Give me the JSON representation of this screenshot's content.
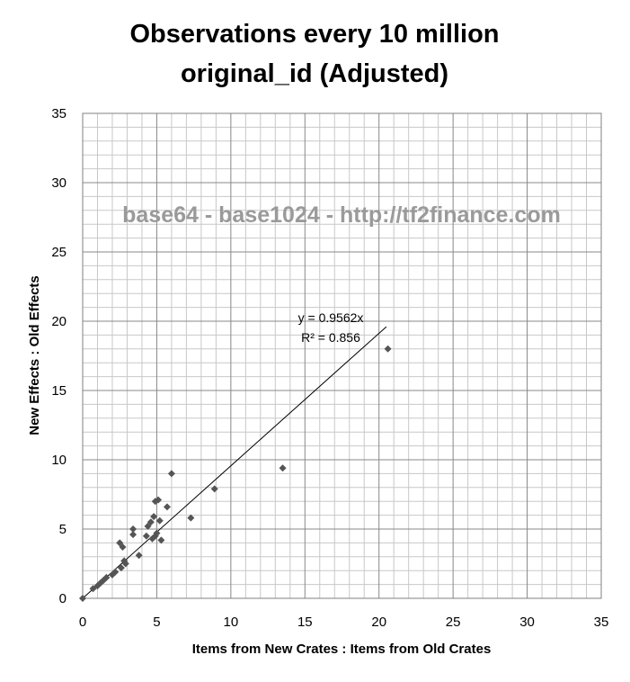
{
  "chart_data": {
    "type": "scatter",
    "title_lines": [
      "Observations every 10 million",
      "original_id (Adjusted)"
    ],
    "xlabel": "Items from New Crates : Items from Old Crates",
    "ylabel": "New Effects : Old Effects",
    "xlim": [
      0,
      35
    ],
    "ylim": [
      0,
      35
    ],
    "major_ticks": [
      0,
      5,
      10,
      15,
      20,
      25,
      30,
      35
    ],
    "minor_step": 1,
    "grid": true,
    "marker": "diamond",
    "marker_color": "#555555",
    "watermark": "base64 - base1024 - http://tf2finance.com",
    "trendline": {
      "slope": 0.9562,
      "x_range": [
        0,
        20.5
      ],
      "equation": "y = 0.9562x",
      "r_squared": "R² = 0.856"
    },
    "points": [
      [
        0,
        0
      ],
      [
        0.7,
        0.7
      ],
      [
        1.0,
        0.9
      ],
      [
        1.2,
        1.1
      ],
      [
        1.4,
        1.3
      ],
      [
        1.6,
        1.5
      ],
      [
        2.0,
        1.7
      ],
      [
        2.2,
        1.9
      ],
      [
        2.5,
        4.0
      ],
      [
        2.6,
        2.2
      ],
      [
        2.7,
        3.7
      ],
      [
        2.8,
        2.7
      ],
      [
        2.9,
        2.5
      ],
      [
        3.4,
        5.0
      ],
      [
        3.4,
        4.6
      ],
      [
        3.8,
        3.1
      ],
      [
        4.3,
        4.5
      ],
      [
        4.4,
        5.2
      ],
      [
        4.6,
        5.5
      ],
      [
        4.7,
        4.3
      ],
      [
        4.8,
        5.9
      ],
      [
        4.9,
        4.5
      ],
      [
        4.9,
        7.0
      ],
      [
        5.0,
        4.7
      ],
      [
        5.1,
        7.1
      ],
      [
        5.2,
        5.6
      ],
      [
        5.3,
        4.2
      ],
      [
        5.7,
        6.6
      ],
      [
        6.0,
        9.0
      ],
      [
        7.3,
        5.8
      ],
      [
        8.9,
        7.9
      ],
      [
        13.5,
        9.4
      ],
      [
        20.6,
        18.0
      ]
    ]
  }
}
